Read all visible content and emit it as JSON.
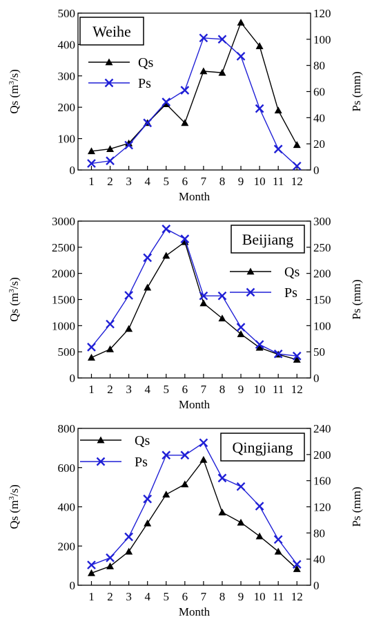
{
  "chart_data": [
    {
      "type": "line",
      "panel_label": "Weihe",
      "xlabel": "Month",
      "ylabel_left": "Qs (m³/s)",
      "ylabel_right": "Ps (mm)",
      "x": [
        1,
        2,
        3,
        4,
        5,
        6,
        7,
        8,
        9,
        10,
        11,
        12
      ],
      "ylim_left": [
        0,
        500
      ],
      "yticks_left": [
        0,
        100,
        200,
        300,
        400,
        500
      ],
      "ylim_right": [
        0,
        120
      ],
      "yticks_right": [
        0,
        20,
        40,
        60,
        80,
        100,
        120
      ],
      "legend_position": "upper-left",
      "series": [
        {
          "name": "Qs",
          "axis": "left",
          "color": "#000000",
          "marker": "triangle",
          "values": [
            60,
            67,
            85,
            150,
            210,
            150,
            315,
            310,
            470,
            395,
            190,
            80
          ]
        },
        {
          "name": "Ps",
          "axis": "right",
          "color": "#1f1fd6",
          "marker": "x",
          "values": [
            5,
            7,
            19,
            36,
            52,
            61,
            101,
            100,
            87,
            47,
            16,
            3
          ]
        }
      ]
    },
    {
      "type": "line",
      "panel_label": "Beijiang",
      "xlabel": "Month",
      "ylabel_left": "Qs (m³/s)",
      "ylabel_right": "Ps (mm)",
      "x": [
        1,
        2,
        3,
        4,
        5,
        6,
        7,
        8,
        9,
        10,
        11,
        12
      ],
      "ylim_left": [
        0,
        3000
      ],
      "yticks_left": [
        0,
        500,
        1000,
        1500,
        2000,
        2500,
        3000
      ],
      "ylim_right": [
        0,
        300
      ],
      "yticks_right": [
        0,
        50,
        100,
        150,
        200,
        250,
        300
      ],
      "legend_position": "right",
      "series": [
        {
          "name": "Qs",
          "axis": "left",
          "color": "#000000",
          "marker": "triangle",
          "values": [
            390,
            550,
            940,
            1730,
            2340,
            2600,
            1430,
            1140,
            840,
            580,
            450,
            350
          ]
        },
        {
          "name": "Ps",
          "axis": "right",
          "color": "#1f1fd6",
          "marker": "x",
          "values": [
            59,
            103,
            158,
            230,
            285,
            266,
            157,
            157,
            97,
            64,
            46,
            42
          ]
        }
      ]
    },
    {
      "type": "line",
      "panel_label": "Qingjiang",
      "xlabel": "Month",
      "ylabel_left": "Qs (m³/s)",
      "ylabel_right": "Ps (mm)",
      "x": [
        1,
        2,
        3,
        4,
        5,
        6,
        7,
        8,
        9,
        10,
        11,
        12
      ],
      "ylim_left": [
        0,
        800
      ],
      "yticks_left": [
        0,
        200,
        400,
        600,
        800
      ],
      "ylim_right": [
        0,
        240
      ],
      "yticks_right": [
        0,
        40,
        80,
        120,
        160,
        200,
        240
      ],
      "legend_position": "upper-left",
      "series": [
        {
          "name": "Qs",
          "axis": "left",
          "color": "#000000",
          "marker": "triangle",
          "values": [
            62,
            97,
            172,
            316,
            463,
            515,
            640,
            372,
            320,
            250,
            172,
            83
          ]
        },
        {
          "name": "Ps",
          "axis": "right",
          "color": "#1f1fd6",
          "marker": "x",
          "values": [
            31,
            42,
            74,
            132,
            199,
            199,
            218,
            164,
            151,
            121,
            70,
            32
          ]
        }
      ]
    }
  ]
}
